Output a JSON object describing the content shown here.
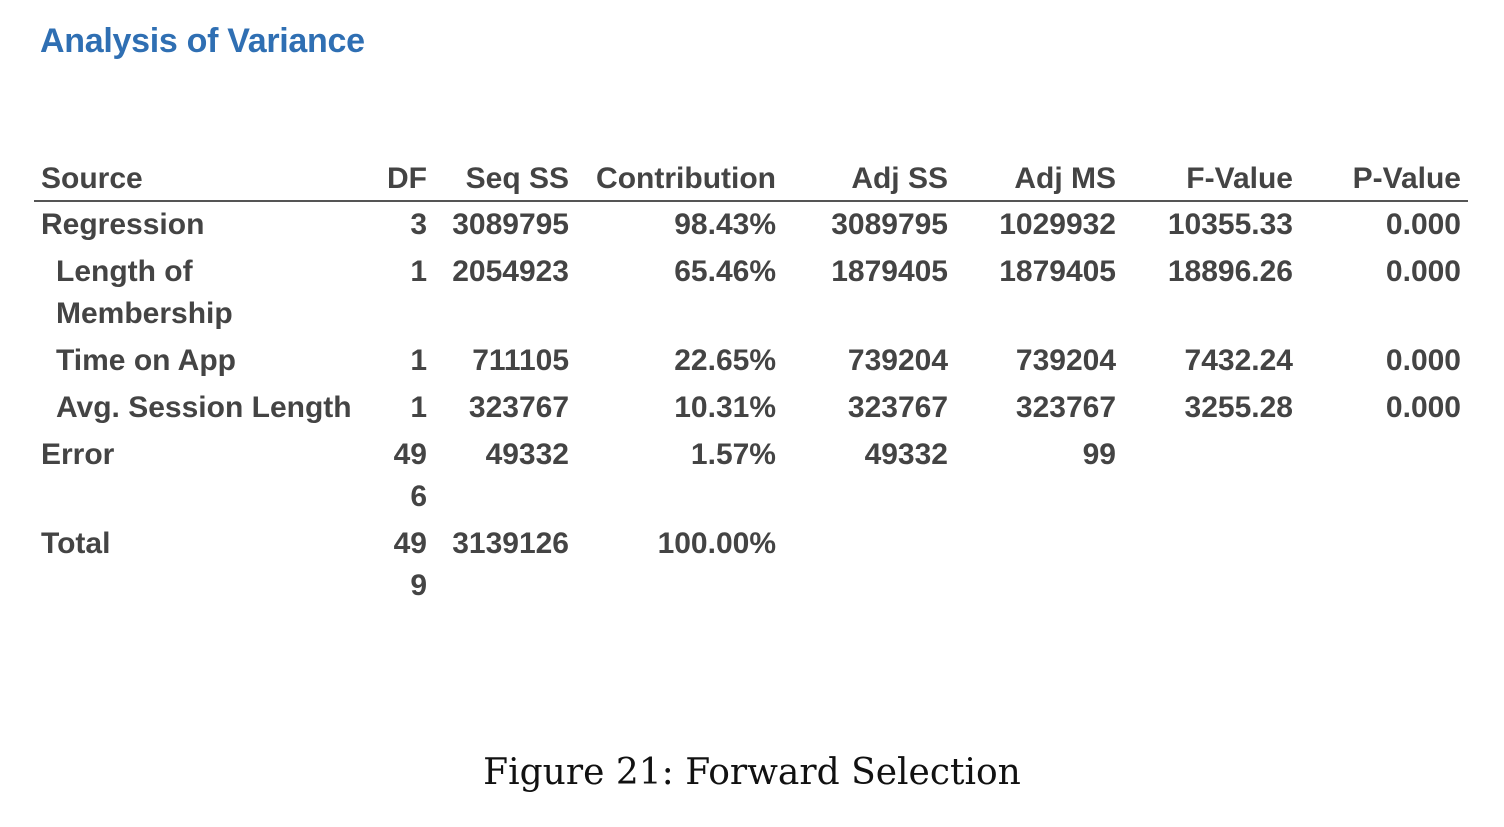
{
  "title": "Analysis of Variance",
  "columns": [
    "Source",
    "DF",
    "Seq SS",
    "Contribution",
    "Adj SS",
    "Adj MS",
    "F-Value",
    "P-Value"
  ],
  "rows": [
    {
      "source": "Regression",
      "indent": false,
      "df": "3",
      "seq_ss": "3089795",
      "contribution": "98.43%",
      "adj_ss": "3089795",
      "adj_ms": "1029932",
      "f_value": "10355.33",
      "p_value": "0.000"
    },
    {
      "source": "Length of Membership",
      "indent": true,
      "df": "1",
      "seq_ss": "2054923",
      "contribution": "65.46%",
      "adj_ss": "1879405",
      "adj_ms": "1879405",
      "f_value": "18896.26",
      "p_value": "0.000"
    },
    {
      "source": "Time on App",
      "indent": true,
      "df": "1",
      "seq_ss": "711105",
      "contribution": "22.65%",
      "adj_ss": "739204",
      "adj_ms": "739204",
      "f_value": "7432.24",
      "p_value": "0.000"
    },
    {
      "source": "Avg. Session Length",
      "indent": true,
      "df": "1",
      "seq_ss": "323767",
      "contribution": "10.31%",
      "adj_ss": "323767",
      "adj_ms": "323767",
      "f_value": "3255.28",
      "p_value": "0.000"
    },
    {
      "source": "Error",
      "indent": false,
      "df": "496",
      "seq_ss": "49332",
      "contribution": "1.57%",
      "adj_ss": "49332",
      "adj_ms": "99",
      "f_value": "",
      "p_value": ""
    },
    {
      "source": "Total",
      "indent": false,
      "df": "499",
      "seq_ss": "3139126",
      "contribution": "100.00%",
      "adj_ss": "",
      "adj_ms": "",
      "f_value": "",
      "p_value": ""
    }
  ],
  "caption": "Figure 21: Forward Selection"
}
